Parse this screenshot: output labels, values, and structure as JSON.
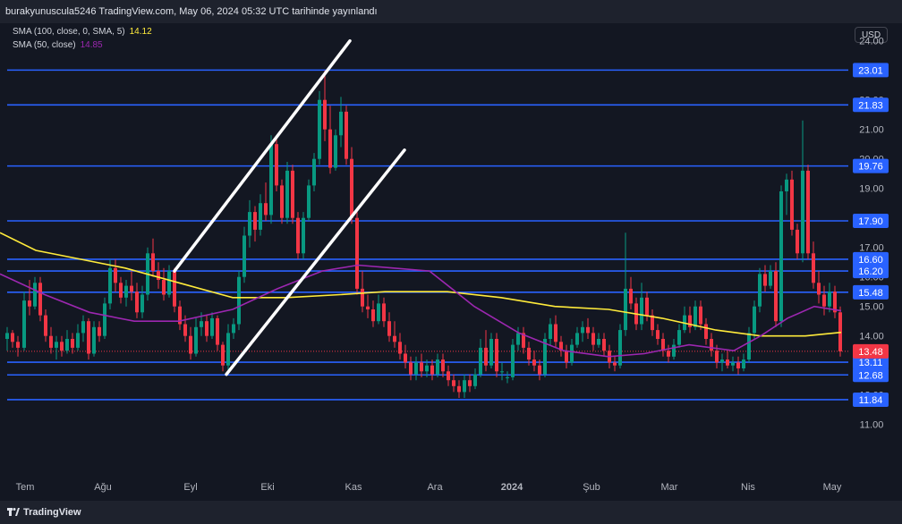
{
  "header": {
    "text": "burakyunuscula5246 TradingView.com, May 06, 2024 05:32 UTC tarihinde yayınlandı"
  },
  "indicators": [
    {
      "label": "SMA (100, close, 0, SMA, 5)",
      "value": "14.12",
      "color": "#ffeb3b"
    },
    {
      "label": "SMA (50, close)",
      "value": "14.85",
      "color": "#9c27b0"
    }
  ],
  "currency": "USD",
  "footer": {
    "logo_text": "TradingView"
  },
  "colors": {
    "up": "#089981",
    "down": "#f23645",
    "level": "#2962ff",
    "current": "#f23645",
    "background": "#131722"
  },
  "chart_data": {
    "type": "candlestick",
    "x_labels": [
      "Tem",
      "Ağu",
      "Eyl",
      "Eki",
      "Kas",
      "Ara",
      "2024",
      "Şub",
      "Mar",
      "Nis",
      "May"
    ],
    "y_ticks": [
      "11.00",
      "12.00",
      "13.00",
      "14.00",
      "15.00",
      "16.00",
      "17.00",
      "18.00",
      "19.00",
      "20.00",
      "21.00",
      "22.00",
      "23.00",
      "24.00"
    ],
    "ylim": [
      10.4,
      24.9
    ],
    "horizontal_levels": [
      23.01,
      21.83,
      19.76,
      17.9,
      16.6,
      16.2,
      15.48,
      13.11,
      12.68,
      11.84
    ],
    "current_price": 13.48,
    "trend_channel": [
      {
        "from": [
          "Sep 2023",
          16.2
        ],
        "to": [
          "Oct 2023",
          24.0
        ]
      },
      {
        "from": [
          "Sep 2023",
          12.7
        ],
        "to": [
          "Nov 2023",
          20.3
        ]
      }
    ],
    "series": [
      {
        "name": "SMA (100, close, 0, SMA, 5)",
        "points": [
          [
            0,
            17.5
          ],
          [
            40,
            16.9
          ],
          [
            90,
            16.6
          ],
          [
            140,
            16.3
          ],
          [
            200,
            15.8
          ],
          [
            260,
            15.3
          ],
          [
            320,
            15.3
          ],
          [
            380,
            15.4
          ],
          [
            430,
            15.5
          ],
          [
            500,
            15.5
          ],
          [
            560,
            15.3
          ],
          [
            620,
            15.0
          ],
          [
            680,
            14.9
          ],
          [
            740,
            14.6
          ],
          [
            800,
            14.2
          ],
          [
            850,
            14.0
          ],
          [
            900,
            14.0
          ],
          [
            940,
            14.12
          ]
        ]
      },
      {
        "name": "SMA (50, close)",
        "points": [
          [
            0,
            16.1
          ],
          [
            50,
            15.4
          ],
          [
            100,
            14.8
          ],
          [
            150,
            14.5
          ],
          [
            200,
            14.5
          ],
          [
            260,
            14.9
          ],
          [
            310,
            15.6
          ],
          [
            360,
            16.2
          ],
          [
            400,
            16.4
          ],
          [
            440,
            16.3
          ],
          [
            480,
            16.2
          ],
          [
            530,
            15.0
          ],
          [
            580,
            14.1
          ],
          [
            630,
            13.5
          ],
          [
            680,
            13.3
          ],
          [
            720,
            13.4
          ],
          [
            770,
            13.7
          ],
          [
            820,
            13.5
          ],
          [
            850,
            14.0
          ],
          [
            880,
            14.6
          ],
          [
            910,
            15.0
          ],
          [
            940,
            14.85
          ]
        ]
      }
    ],
    "candles": [
      [
        8,
        13.9,
        14.3,
        13.5,
        14.1
      ],
      [
        14,
        14.1,
        14.2,
        13.6,
        13.8
      ],
      [
        20,
        13.8,
        14.0,
        13.3,
        13.6
      ],
      [
        27,
        13.6,
        15.5,
        13.5,
        15.2
      ],
      [
        33,
        15.2,
        15.9,
        14.7,
        15.0
      ],
      [
        39,
        15.0,
        16.0,
        14.9,
        15.8
      ],
      [
        45,
        15.8,
        16.0,
        14.5,
        14.7
      ],
      [
        51,
        14.7,
        14.9,
        13.8,
        14.0
      ],
      [
        57,
        14.0,
        14.3,
        13.4,
        13.6
      ],
      [
        63,
        13.6,
        14.0,
        13.2,
        13.8
      ],
      [
        69,
        13.8,
        14.0,
        13.3,
        13.5
      ],
      [
        75,
        13.5,
        14.2,
        13.4,
        13.9
      ],
      [
        81,
        13.9,
        14.1,
        13.4,
        13.6
      ],
      [
        87,
        13.6,
        14.4,
        13.5,
        14.1
      ],
      [
        93,
        14.1,
        14.7,
        13.8,
        14.5
      ],
      [
        99,
        14.5,
        14.6,
        13.2,
        13.4
      ],
      [
        105,
        13.4,
        14.5,
        13.3,
        14.3
      ],
      [
        111,
        14.3,
        14.5,
        13.8,
        14.0
      ],
      [
        117,
        14.0,
        15.3,
        13.9,
        15.1
      ],
      [
        123,
        15.1,
        16.6,
        14.9,
        16.3
      ],
      [
        129,
        16.3,
        16.6,
        15.5,
        15.8
      ],
      [
        135,
        15.8,
        16.0,
        15.1,
        15.3
      ],
      [
        141,
        15.3,
        15.9,
        15.0,
        15.7
      ],
      [
        147,
        15.7,
        16.2,
        15.2,
        15.5
      ],
      [
        153,
        15.5,
        15.8,
        14.6,
        14.8
      ],
      [
        159,
        14.8,
        15.7,
        14.6,
        15.4
      ],
      [
        165,
        15.4,
        17.0,
        15.2,
        16.8
      ],
      [
        171,
        16.8,
        17.3,
        16.0,
        16.2
      ],
      [
        177,
        16.2,
        16.5,
        15.6,
        15.9
      ],
      [
        183,
        15.9,
        16.3,
        15.2,
        15.4
      ],
      [
        189,
        15.4,
        16.4,
        15.3,
        16.2
      ],
      [
        195,
        16.2,
        16.3,
        14.8,
        15.0
      ],
      [
        201,
        15.0,
        15.2,
        14.2,
        14.4
      ],
      [
        207,
        14.4,
        14.7,
        13.8,
        14.0
      ],
      [
        213,
        14.0,
        14.3,
        13.2,
        13.4
      ],
      [
        219,
        13.4,
        14.6,
        13.3,
        14.3
      ],
      [
        225,
        14.3,
        14.8,
        14.0,
        14.5
      ],
      [
        231,
        14.5,
        14.7,
        13.8,
        14.0
      ],
      [
        237,
        14.0,
        14.8,
        13.9,
        14.6
      ],
      [
        243,
        14.6,
        14.7,
        13.5,
        13.7
      ],
      [
        249,
        13.7,
        13.8,
        12.8,
        13.0
      ],
      [
        255,
        13.0,
        14.4,
        12.8,
        14.1
      ],
      [
        261,
        14.1,
        14.6,
        13.9,
        14.4
      ],
      [
        267,
        14.4,
        16.2,
        14.2,
        16.0
      ],
      [
        273,
        16.0,
        17.7,
        15.8,
        17.4
      ],
      [
        279,
        17.4,
        18.6,
        17.0,
        18.2
      ],
      [
        285,
        18.2,
        18.4,
        17.2,
        17.6
      ],
      [
        291,
        17.6,
        18.8,
        17.4,
        18.5
      ],
      [
        297,
        18.5,
        19.2,
        17.9,
        18.1
      ],
      [
        303,
        18.1,
        20.8,
        17.8,
        20.5
      ],
      [
        309,
        20.5,
        20.7,
        18.9,
        19.1
      ],
      [
        315,
        19.1,
        19.3,
        17.8,
        18.0
      ],
      [
        321,
        18.0,
        19.9,
        17.8,
        19.6
      ],
      [
        327,
        19.6,
        19.8,
        17.8,
        18.0
      ],
      [
        333,
        18.0,
        18.2,
        16.6,
        16.8
      ],
      [
        339,
        16.8,
        18.2,
        16.6,
        18.0
      ],
      [
        345,
        18.0,
        19.3,
        17.9,
        19.1
      ],
      [
        351,
        19.1,
        20.2,
        18.9,
        20.0
      ],
      [
        357,
        20.0,
        22.3,
        19.8,
        22.0
      ],
      [
        363,
        22.0,
        23.0,
        20.6,
        21.0
      ],
      [
        369,
        21.0,
        21.8,
        19.5,
        19.7
      ],
      [
        375,
        19.7,
        21.0,
        19.6,
        20.8
      ],
      [
        381,
        20.8,
        22.1,
        20.4,
        21.6
      ],
      [
        387,
        21.6,
        21.8,
        19.8,
        20.0
      ],
      [
        393,
        20.0,
        20.4,
        17.8,
        18.0
      ],
      [
        399,
        18.0,
        18.2,
        15.4,
        15.6
      ],
      [
        405,
        15.6,
        16.2,
        14.8,
        15.0
      ],
      [
        411,
        15.0,
        15.4,
        14.6,
        14.9
      ],
      [
        417,
        14.9,
        15.2,
        14.3,
        14.5
      ],
      [
        423,
        14.5,
        15.4,
        14.4,
        15.1
      ],
      [
        429,
        15.1,
        15.3,
        14.3,
        14.5
      ],
      [
        435,
        14.5,
        14.8,
        13.8,
        14.0
      ],
      [
        441,
        14.0,
        14.5,
        13.6,
        13.8
      ],
      [
        447,
        13.8,
        14.1,
        13.2,
        13.4
      ],
      [
        453,
        13.4,
        13.7,
        12.9,
        13.1
      ],
      [
        459,
        13.1,
        13.3,
        12.5,
        12.7
      ],
      [
        465,
        12.7,
        13.3,
        12.5,
        13.1
      ],
      [
        471,
        13.1,
        13.4,
        12.6,
        12.8
      ],
      [
        477,
        12.8,
        13.2,
        12.6,
        13.0
      ],
      [
        483,
        13.0,
        13.2,
        12.5,
        12.7
      ],
      [
        489,
        12.7,
        13.4,
        12.6,
        13.2
      ],
      [
        495,
        13.2,
        13.4,
        12.6,
        12.8
      ],
      [
        501,
        12.8,
        13.0,
        12.3,
        12.5
      ],
      [
        507,
        12.5,
        12.7,
        12.1,
        12.3
      ],
      [
        513,
        12.3,
        12.5,
        11.9,
        12.1
      ],
      [
        519,
        12.1,
        12.7,
        11.9,
        12.5
      ],
      [
        525,
        12.5,
        12.7,
        12.1,
        12.3
      ],
      [
        531,
        12.3,
        12.9,
        12.2,
        12.7
      ],
      [
        537,
        12.7,
        13.9,
        12.6,
        13.6
      ],
      [
        543,
        13.6,
        14.2,
        12.8,
        13.0
      ],
      [
        549,
        13.0,
        14.1,
        12.9,
        13.9
      ],
      [
        555,
        13.9,
        14.1,
        12.6,
        12.8
      ],
      [
        561,
        12.8,
        13.1,
        12.5,
        12.8
      ],
      [
        567,
        12.6,
        12.8,
        12.4,
        12.6
      ],
      [
        573,
        12.6,
        13.9,
        12.5,
        13.7
      ],
      [
        579,
        13.7,
        14.3,
        13.5,
        14.1
      ],
      [
        585,
        14.1,
        14.3,
        13.4,
        13.6
      ],
      [
        591,
        13.6,
        13.8,
        13.0,
        13.2
      ],
      [
        597,
        13.2,
        13.5,
        12.8,
        13.0
      ],
      [
        603,
        13.0,
        13.2,
        12.5,
        12.7
      ],
      [
        609,
        12.7,
        14.1,
        12.6,
        13.9
      ],
      [
        615,
        13.9,
        14.6,
        13.7,
        14.4
      ],
      [
        621,
        14.4,
        14.7,
        13.6,
        13.8
      ],
      [
        627,
        13.8,
        14.0,
        13.3,
        13.5
      ],
      [
        633,
        13.5,
        13.7,
        12.9,
        13.1
      ],
      [
        639,
        13.1,
        13.9,
        13.0,
        13.7
      ],
      [
        645,
        13.7,
        14.3,
        13.6,
        14.1
      ],
      [
        651,
        14.1,
        14.5,
        13.8,
        14.3
      ],
      [
        657,
        14.3,
        14.6,
        13.9,
        14.1
      ],
      [
        663,
        14.1,
        14.3,
        13.5,
        13.7
      ],
      [
        669,
        13.7,
        14.1,
        13.6,
        13.9
      ],
      [
        675,
        13.9,
        14.1,
        13.3,
        13.5
      ],
      [
        681,
        13.5,
        13.7,
        12.9,
        13.1
      ],
      [
        687,
        13.1,
        13.3,
        12.8,
        13.0
      ],
      [
        693,
        13.0,
        14.4,
        12.9,
        14.2
      ],
      [
        699,
        14.2,
        17.5,
        14.0,
        15.6
      ],
      [
        705,
        15.6,
        16.0,
        14.9,
        15.1
      ],
      [
        711,
        15.1,
        15.3,
        14.2,
        14.4
      ],
      [
        717,
        14.4,
        15.8,
        14.2,
        15.3
      ],
      [
        723,
        15.3,
        15.5,
        14.5,
        14.7
      ],
      [
        729,
        14.7,
        14.9,
        14.0,
        14.2
      ],
      [
        735,
        14.2,
        14.4,
        13.7,
        13.9
      ],
      [
        741,
        13.9,
        14.1,
        13.3,
        13.5
      ],
      [
        747,
        13.5,
        13.7,
        13.1,
        13.3
      ],
      [
        753,
        13.3,
        13.9,
        13.2,
        13.7
      ],
      [
        759,
        13.7,
        14.4,
        13.6,
        14.2
      ],
      [
        765,
        14.2,
        15.0,
        14.1,
        14.7
      ],
      [
        771,
        14.7,
        15.0,
        14.1,
        14.3
      ],
      [
        777,
        14.3,
        15.2,
        14.2,
        15.0
      ],
      [
        783,
        15.0,
        15.2,
        14.2,
        14.4
      ],
      [
        789,
        14.4,
        14.6,
        13.7,
        13.9
      ],
      [
        795,
        13.9,
        14.1,
        13.3,
        13.5
      ],
      [
        801,
        13.5,
        13.7,
        12.9,
        13.1
      ],
      [
        807,
        13.1,
        13.4,
        12.8,
        13.2
      ],
      [
        813,
        13.2,
        13.5,
        12.9,
        13.0
      ],
      [
        819,
        13.0,
        13.3,
        12.8,
        13.1
      ],
      [
        825,
        13.1,
        13.3,
        12.7,
        12.9
      ],
      [
        831,
        12.9,
        13.4,
        12.8,
        13.2
      ],
      [
        837,
        13.2,
        14.3,
        13.1,
        14.1
      ],
      [
        843,
        14.1,
        15.2,
        13.9,
        15.0
      ],
      [
        849,
        15.0,
        16.3,
        14.8,
        16.1
      ],
      [
        855,
        16.1,
        16.4,
        15.5,
        15.7
      ],
      [
        861,
        15.7,
        16.4,
        15.6,
        16.2
      ],
      [
        867,
        16.2,
        16.5,
        14.3,
        14.5
      ],
      [
        873,
        14.5,
        19.1,
        14.3,
        18.9
      ],
      [
        879,
        18.9,
        19.5,
        18.1,
        19.3
      ],
      [
        885,
        19.3,
        19.6,
        17.4,
        17.6
      ],
      [
        891,
        17.6,
        17.8,
        16.6,
        16.8
      ],
      [
        897,
        16.8,
        21.3,
        16.5,
        19.6
      ],
      [
        903,
        19.6,
        19.8,
        16.6,
        16.8
      ],
      [
        909,
        16.8,
        17.2,
        15.6,
        15.8
      ],
      [
        915,
        15.8,
        16.2,
        15.1,
        15.4
      ],
      [
        921,
        15.4,
        15.7,
        14.7,
        15.0
      ],
      [
        927,
        15.0,
        15.8,
        14.8,
        15.5
      ],
      [
        933,
        15.5,
        15.7,
        14.6,
        14.8
      ],
      [
        939,
        14.8,
        15.0,
        13.3,
        13.48
      ]
    ]
  }
}
